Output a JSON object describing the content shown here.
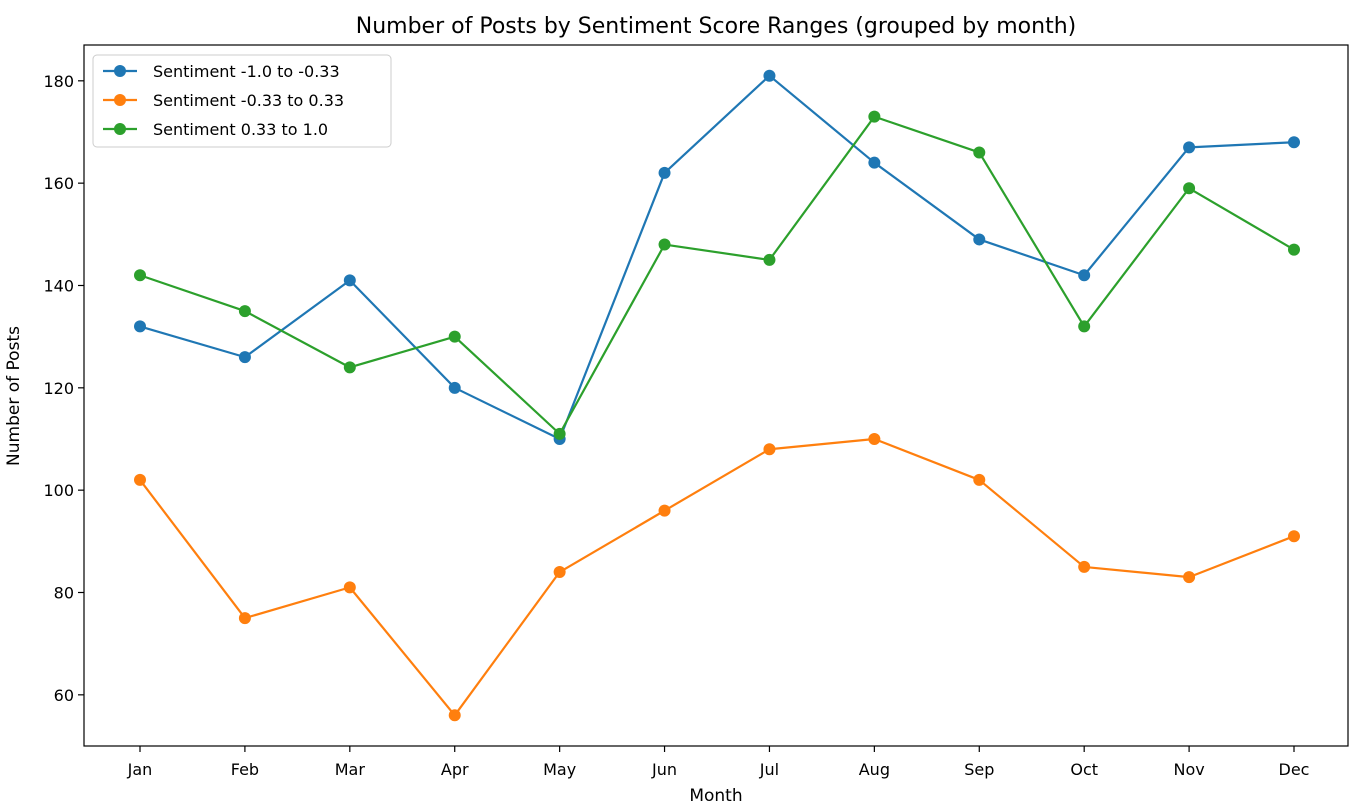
{
  "chart_data": {
    "type": "line",
    "title": "Number of Posts by Sentiment Score Ranges (grouped by month)",
    "xlabel": "Month",
    "ylabel": "Number of Posts",
    "categories": [
      "Jan",
      "Feb",
      "Mar",
      "Apr",
      "May",
      "Jun",
      "Jul",
      "Aug",
      "Sep",
      "Oct",
      "Nov",
      "Dec"
    ],
    "ylim": [
      50,
      187
    ],
    "yticks": [
      60,
      80,
      100,
      120,
      140,
      160,
      180
    ],
    "grid": false,
    "legend_position": "top-left",
    "series": [
      {
        "name": "Sentiment -1.0 to -0.33",
        "color": "#1f77b4",
        "values": [
          132,
          126,
          141,
          120,
          110,
          162,
          181,
          164,
          149,
          142,
          167,
          168
        ]
      },
      {
        "name": "Sentiment -0.33 to 0.33",
        "color": "#ff7f0e",
        "values": [
          102,
          75,
          81,
          56,
          84,
          96,
          108,
          110,
          102,
          85,
          83,
          91
        ]
      },
      {
        "name": "Sentiment 0.33 to 1.0",
        "color": "#2ca02c",
        "values": [
          142,
          135,
          124,
          130,
          111,
          148,
          145,
          173,
          166,
          132,
          159,
          147
        ]
      }
    ]
  }
}
